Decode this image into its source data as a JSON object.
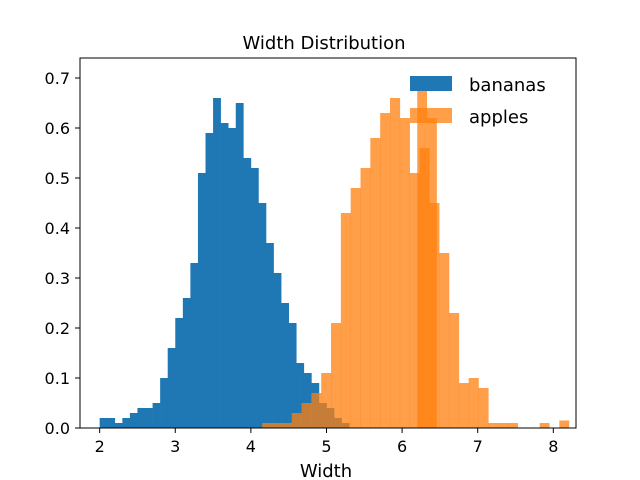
{
  "chart_data": {
    "type": "bar",
    "subtype": "overlapping-histogram",
    "title": "Width Distribution",
    "xlabel": "Width",
    "ylabel": "",
    "xlim": [
      1.74,
      8.3
    ],
    "ylim": [
      0,
      0.7
    ],
    "xticks": [
      2,
      3,
      4,
      5,
      6,
      7,
      8
    ],
    "yticks": [
      0.0,
      0.1,
      0.2,
      0.3,
      0.4,
      0.5,
      0.6,
      0.7
    ],
    "legend_position": "top-right",
    "grid": false,
    "series": [
      {
        "name": "bananas",
        "color": "#1f77b4",
        "opacity": 1.0,
        "bin_start": 2.0,
        "bin_width": 0.1,
        "values": [
          0.02,
          0.02,
          0.01,
          0.02,
          0.03,
          0.04,
          0.04,
          0.05,
          0.1,
          0.16,
          0.22,
          0.26,
          0.33,
          0.51,
          0.59,
          0.66,
          0.61,
          0.6,
          0.65,
          0.54,
          0.52,
          0.45,
          0.37,
          0.31,
          0.25,
          0.21,
          0.13,
          0.11,
          0.09,
          0.05,
          0.04,
          0.02,
          0.01
        ]
      },
      {
        "name": "apples",
        "color": "#ff7f0e",
        "opacity": 0.75,
        "bin_start": 4.15,
        "bin_width": 0.13,
        "values": [
          0.01,
          0.01,
          0.01,
          0.03,
          0.05,
          0.07,
          0.11,
          0.21,
          0.43,
          0.48,
          0.52,
          0.58,
          0.63,
          0.66,
          0.62,
          0.51,
          0.56,
          0.45,
          0.35,
          0.23,
          0.09,
          0.1,
          0.08,
          0.01,
          0.01,
          0.01
        ]
      }
    ],
    "legend_extra_bins": [
      {
        "x": 6.2,
        "value": 0.7
      },
      {
        "x": 6.33,
        "value": 0.62
      }
    ],
    "tail_bins": [
      {
        "series": "apples",
        "x": 7.82,
        "value": 0.01
      },
      {
        "series": "apples",
        "x": 8.08,
        "value": 0.015
      }
    ]
  }
}
